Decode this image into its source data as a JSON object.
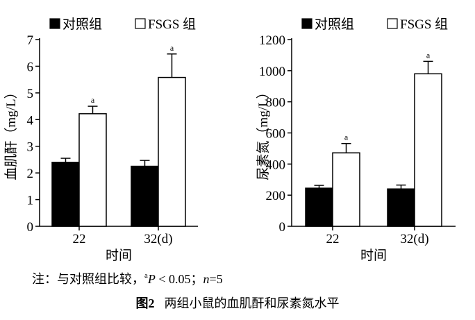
{
  "chart_data": [
    {
      "type": "bar",
      "ylabel": "血肌酐（mg/L）",
      "xlabel": "时间",
      "categories": [
        "22",
        "32(d)"
      ],
      "series": [
        {
          "name": "对照组",
          "color": "#000000",
          "values": [
            2.4,
            2.25
          ],
          "errors": [
            0.15,
            0.22
          ]
        },
        {
          "name": "FSGS 组",
          "color": "#ffffff",
          "values": [
            4.22,
            5.58
          ],
          "errors": [
            0.28,
            0.88
          ],
          "labels": [
            "a",
            "a"
          ]
        }
      ],
      "ylim": [
        0,
        7
      ],
      "yticks": [
        0,
        1,
        2,
        3,
        4,
        5,
        6,
        7
      ]
    },
    {
      "type": "bar",
      "ylabel": "尿素氮（mg/L）",
      "xlabel": "时间",
      "categories": [
        "22",
        "32(d)"
      ],
      "series": [
        {
          "name": "对照组",
          "color": "#000000",
          "values": [
            245,
            240
          ],
          "errors": [
            18,
            25
          ]
        },
        {
          "name": "FSGS 组",
          "color": "#ffffff",
          "values": [
            472,
            980
          ],
          "errors": [
            60,
            80
          ],
          "labels": [
            "a",
            "a"
          ]
        }
      ],
      "ylim": [
        0,
        1200
      ],
      "yticks": [
        0,
        200,
        400,
        600,
        800,
        1000,
        1200
      ]
    }
  ],
  "note": {
    "prefix": "注：与对照组比较，",
    "sup": "a",
    "p": "P",
    "p_rest": " < 0.05；",
    "n": "n",
    "n_rest": "=5"
  },
  "caption": {
    "number": "图2",
    "text": "两组小鼠的血肌酐和尿素氮水平"
  }
}
